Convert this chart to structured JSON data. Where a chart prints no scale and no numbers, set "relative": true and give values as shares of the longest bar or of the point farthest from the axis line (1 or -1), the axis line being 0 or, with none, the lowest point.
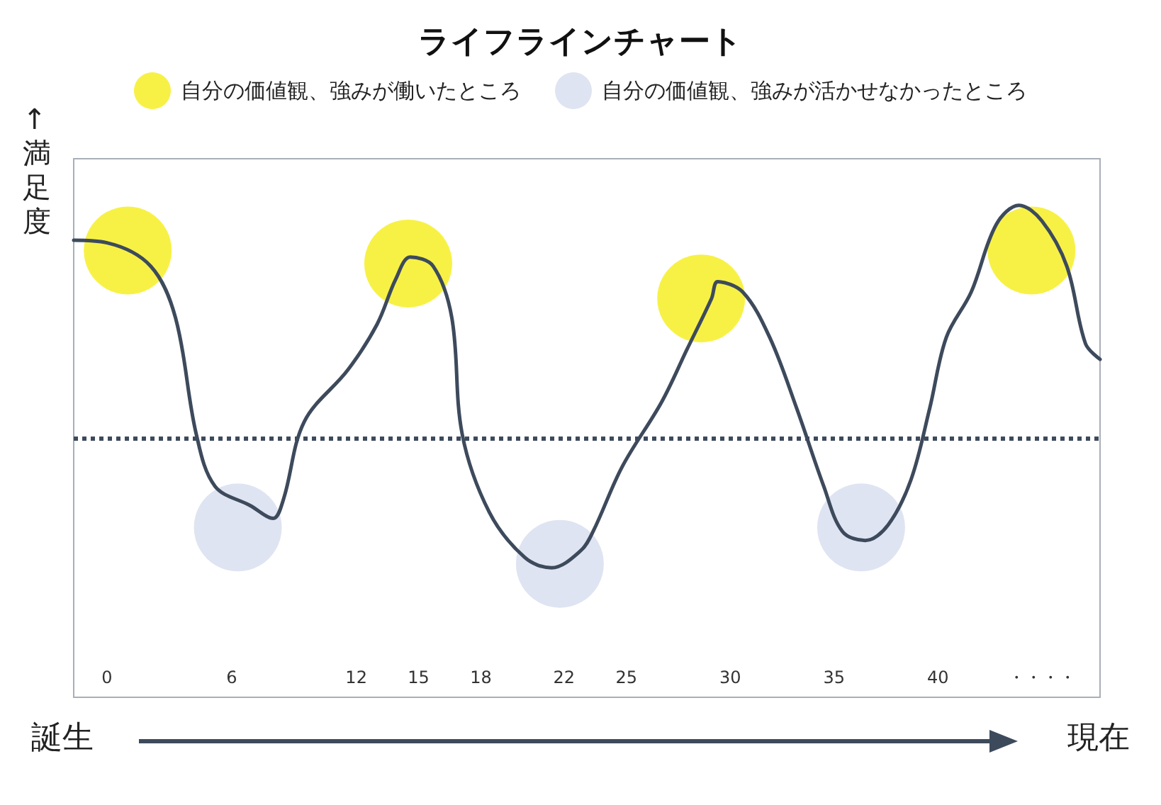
{
  "chart_data": {
    "type": "line",
    "title": "ライフラインチャート",
    "ylabel": "↑満足度",
    "xlabel": "誕生",
    "annotations": [
      "現在"
    ],
    "relative": true,
    "legend": "top",
    "grid": false,
    "ref_lines": [
      {
        "axis": "y",
        "value": 0,
        "line_style": "dotted",
        "color": "#3d4a5c"
      }
    ],
    "xlim": [
      -1.6,
      47.8
    ],
    "xticks": [
      0,
      6,
      12,
      15,
      18,
      22,
      25,
      30,
      35,
      40,
      {
        "value": 45,
        "label": "・・・・"
      }
    ],
    "series": [
      {
        "type": "scatter",
        "name": "自分の価値観、強みが働いたところ",
        "color": "#f7f03c",
        "marker": "circle",
        "x": [
          1.0,
          14.5,
          28.6,
          44.5
        ],
        "values": [
          0.806,
          0.75,
          0.6,
          0.806
        ]
      },
      {
        "type": "scatter",
        "name": "自分の価値観、強みが活かせなかったところ",
        "color": "#dde3f1",
        "marker": "circle",
        "x": [
          6.3,
          21.8,
          36.3
        ],
        "values": [
          -0.383,
          -0.539,
          -0.383
        ]
      },
      {
        "type": "line",
        "color": "#3d4a5c",
        "marker": "none",
        "line_style": "solid",
        "x": [
          -1.6,
          0,
          2.1,
          3.3,
          4.3,
          5.2,
          6.9,
          8.0,
          8.5,
          9.5,
          11.6,
          13.0,
          13.9,
          14.6,
          15.7,
          16.6,
          17.1,
          18.4,
          20.1,
          21.4,
          22.8,
          23.4,
          24.8,
          26.7,
          27.9,
          29.1,
          29.4,
          30.6,
          31.9,
          33.2,
          34.5,
          35.4,
          36.5,
          37.6,
          38.7,
          39.6,
          40.4,
          41.6,
          42.8,
          43.9,
          45.0,
          46.2,
          47.1,
          47.8
        ],
        "values": [
          0.85,
          0.839,
          0.739,
          0.517,
          0.017,
          -0.206,
          -0.289,
          -0.344,
          -0.261,
          0.072,
          0.294,
          0.489,
          0.683,
          0.778,
          0.739,
          0.517,
          0.017,
          -0.317,
          -0.511,
          -0.556,
          -0.483,
          -0.4,
          -0.122,
          0.156,
          0.378,
          0.6,
          0.672,
          0.628,
          0.433,
          0.128,
          -0.206,
          -0.4,
          -0.439,
          -0.372,
          -0.178,
          0.128,
          0.433,
          0.628,
          0.917,
          1,
          0.933,
          0.739,
          0.406,
          0.339
        ]
      }
    ]
  }
}
